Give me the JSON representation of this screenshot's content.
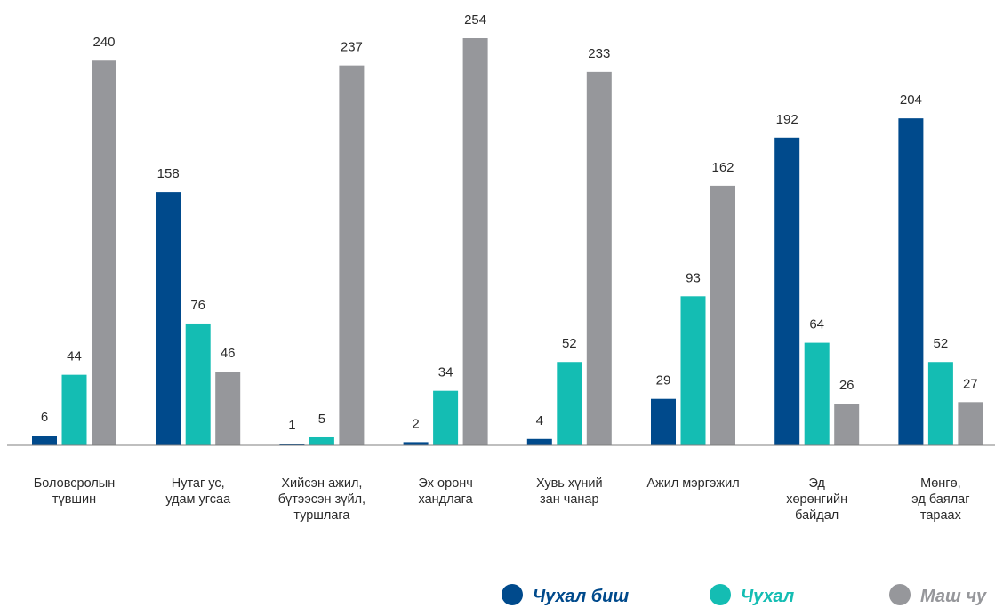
{
  "chart_data": {
    "type": "bar",
    "categories": [
      [
        "Боловсролын",
        "түвшин"
      ],
      [
        "Нутаг ус,",
        "удам угсаа"
      ],
      [
        "Хийсэн ажил,",
        "бүтээсэн зүйл,",
        "туршлага"
      ],
      [
        "Эх оронч",
        "хандлага"
      ],
      [
        "Хувь хүний",
        "зан чанар"
      ],
      [
        "Ажил мэргэжил"
      ],
      [
        "Эд",
        "хөрөнгийн",
        "байдал"
      ],
      [
        "Мөнгө,",
        "эд баялаг",
        "тараах"
      ]
    ],
    "series": [
      {
        "name": "Чухал биш",
        "color": "#004a8c",
        "values": [
          6,
          158,
          1,
          2,
          4,
          29,
          192,
          204
        ]
      },
      {
        "name": "Чухал",
        "color": "#14bdb3",
        "values": [
          44,
          76,
          5,
          34,
          52,
          93,
          64,
          52
        ]
      },
      {
        "name": "Маш чу",
        "color": "#96979b",
        "values": [
          240,
          46,
          237,
          254,
          233,
          162,
          26,
          27
        ]
      }
    ],
    "ylim": [
      0,
      254
    ],
    "grid": false,
    "legend": "bottom-right"
  }
}
